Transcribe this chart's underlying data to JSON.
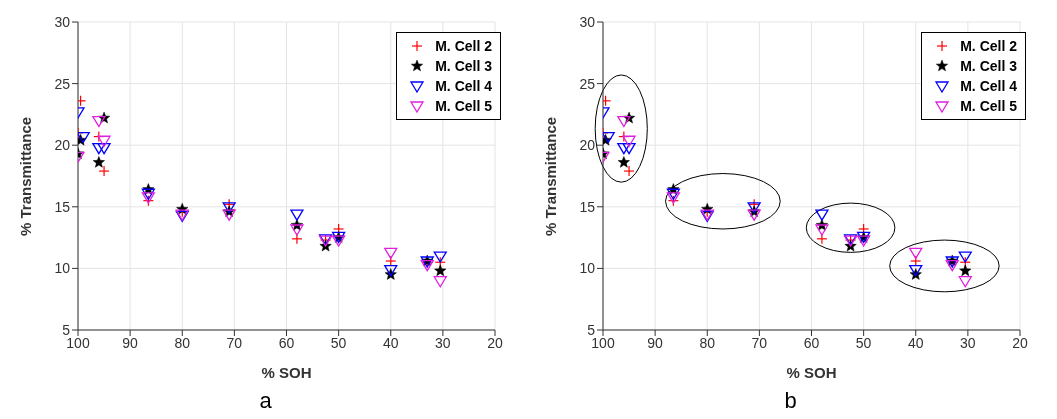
{
  "chart_data": [
    {
      "type": "scatter",
      "title": "a",
      "xlabel": "% SOH",
      "ylabel": "% Transmittance",
      "xlim": [
        100,
        20
      ],
      "xticks": [
        100,
        90,
        80,
        70,
        60,
        50,
        40,
        30,
        20
      ],
      "ylim": [
        5,
        30
      ],
      "yticks": [
        5,
        10,
        15,
        20,
        25,
        30
      ],
      "grid": true,
      "legend": "top right",
      "series": [
        {
          "name": "M. Cell 2",
          "color": "#ff0000",
          "marker": "cross",
          "x": [
            99.5,
            100,
            96,
            95,
            86.5,
            80,
            71,
            58,
            52.5,
            50,
            40,
            33,
            30.5
          ],
          "values": [
            23.6,
            21.0,
            20.7,
            17.9,
            15.5,
            14.6,
            15.2,
            12.4,
            12.3,
            13.2,
            10.6,
            10.5,
            10.5
          ]
        },
        {
          "name": "M. Cell 3",
          "color": "#000000",
          "marker": "star",
          "x": [
            100,
            99.5,
            96,
            95,
            86.5,
            80,
            71,
            58,
            52.5,
            50,
            40,
            33,
            30.5
          ],
          "values": [
            19.3,
            20.4,
            18.6,
            22.2,
            16.4,
            14.8,
            14.6,
            13.5,
            11.8,
            12.5,
            9.5,
            10.6,
            9.8
          ]
        },
        {
          "name": "M. Cell 4",
          "color": "#0000ff",
          "marker": "triangle",
          "x": [
            100,
            99,
            96,
            95,
            86.5,
            80,
            71,
            58,
            52.5,
            50,
            40,
            33,
            30.5
          ],
          "values": [
            22.7,
            20.7,
            19.8,
            19.8,
            16.1,
            14.3,
            15.0,
            14.4,
            12.4,
            12.6,
            9.9,
            10.6,
            11.0
          ]
        },
        {
          "name": "M. Cell 5",
          "color": "#e020e0",
          "marker": "triangle",
          "x": [
            100,
            96,
            95,
            86.5,
            80,
            71,
            58,
            52.5,
            50,
            40,
            33,
            30.5
          ],
          "values": [
            19.1,
            22.0,
            20.4,
            15.8,
            14.4,
            14.4,
            13.2,
            12.3,
            12.3,
            11.3,
            10.3,
            9.0
          ]
        }
      ]
    },
    {
      "type": "scatter",
      "title": "b",
      "xlabel": "% SOH",
      "ylabel": "% Transmittance",
      "xlim": [
        100,
        20
      ],
      "xticks": [
        100,
        90,
        80,
        70,
        60,
        50,
        40,
        30,
        20
      ],
      "ylim": [
        5,
        30
      ],
      "yticks": [
        5,
        10,
        15,
        20,
        25,
        30
      ],
      "grid": true,
      "legend": "top right",
      "series": [
        {
          "name": "M. Cell 2",
          "color": "#ff0000",
          "marker": "cross",
          "x": [
            99.5,
            100,
            96,
            95,
            86.5,
            80,
            71,
            58,
            52.5,
            50,
            40,
            33,
            30.5
          ],
          "values": [
            23.6,
            21.0,
            20.7,
            17.9,
            15.5,
            14.6,
            15.2,
            12.4,
            12.3,
            13.2,
            10.6,
            10.5,
            10.5
          ]
        },
        {
          "name": "M. Cell 3",
          "color": "#000000",
          "marker": "star",
          "x": [
            100,
            99.5,
            96,
            95,
            86.5,
            80,
            71,
            58,
            52.5,
            50,
            40,
            33,
            30.5
          ],
          "values": [
            19.3,
            20.4,
            18.6,
            22.2,
            16.4,
            14.8,
            14.6,
            13.5,
            11.8,
            12.5,
            9.5,
            10.6,
            9.8
          ]
        },
        {
          "name": "M. Cell 4",
          "color": "#0000ff",
          "marker": "triangle",
          "x": [
            100,
            99,
            96,
            95,
            86.5,
            80,
            71,
            58,
            52.5,
            50,
            40,
            33,
            30.5
          ],
          "values": [
            22.7,
            20.7,
            19.8,
            19.8,
            16.1,
            14.3,
            15.0,
            14.4,
            12.4,
            12.6,
            9.9,
            10.6,
            11.0
          ]
        },
        {
          "name": "M. Cell 5",
          "color": "#e020e0",
          "marker": "triangle",
          "x": [
            100,
            96,
            95,
            86.5,
            80,
            71,
            58,
            52.5,
            50,
            40,
            33,
            30.5
          ],
          "values": [
            19.1,
            22.0,
            20.4,
            15.8,
            14.4,
            14.4,
            13.2,
            12.3,
            12.3,
            11.3,
            10.3,
            9.0
          ]
        }
      ]
    }
  ]
}
